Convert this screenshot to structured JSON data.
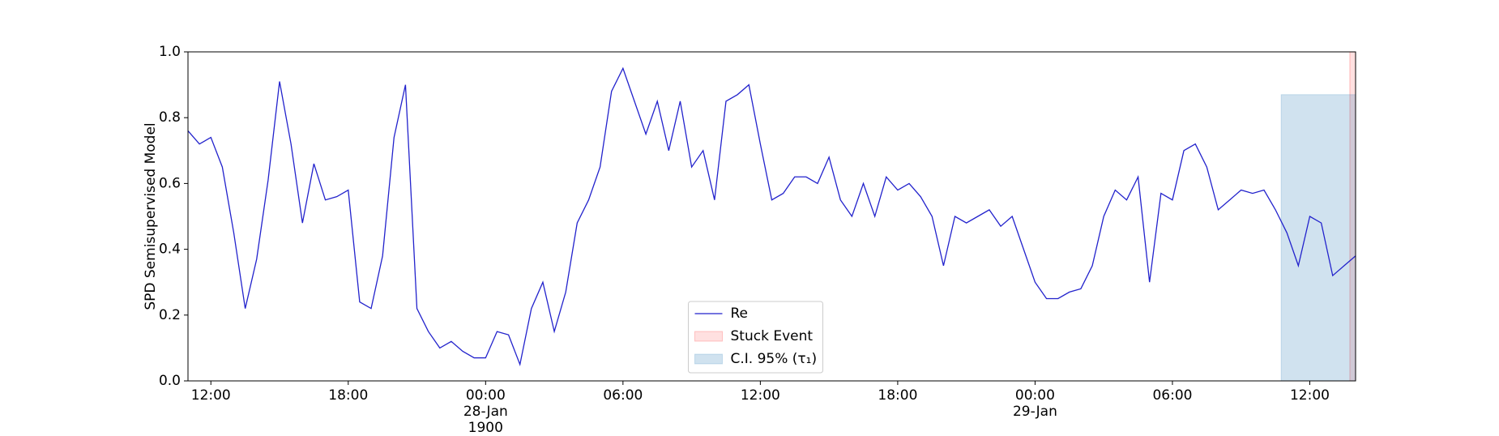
{
  "chart_data": {
    "type": "line",
    "y_label": "SPD Semisupervised Model",
    "x": [
      "1900-01-27 11:00",
      "1900-01-27 11:30",
      "1900-01-27 12:00",
      "1900-01-27 12:30",
      "1900-01-27 13:00",
      "1900-01-27 13:30",
      "1900-01-27 14:00",
      "1900-01-27 14:30",
      "1900-01-27 15:00",
      "1900-01-27 15:30",
      "1900-01-27 16:00",
      "1900-01-27 16:30",
      "1900-01-27 17:00",
      "1900-01-27 17:30",
      "1900-01-27 18:00",
      "1900-01-27 18:30",
      "1900-01-27 19:00",
      "1900-01-27 19:30",
      "1900-01-27 20:00",
      "1900-01-27 20:30",
      "1900-01-27 21:00",
      "1900-01-27 21:30",
      "1900-01-27 22:00",
      "1900-01-27 22:30",
      "1900-01-27 23:00",
      "1900-01-27 23:30",
      "1900-01-28 00:00",
      "1900-01-28 00:30",
      "1900-01-28 01:00",
      "1900-01-28 01:30",
      "1900-01-28 02:00",
      "1900-01-28 02:30",
      "1900-01-28 03:00",
      "1900-01-28 03:30",
      "1900-01-28 04:00",
      "1900-01-28 04:30",
      "1900-01-28 05:00",
      "1900-01-28 05:30",
      "1900-01-28 06:00",
      "1900-01-28 06:30",
      "1900-01-28 07:00",
      "1900-01-28 07:30",
      "1900-01-28 08:00",
      "1900-01-28 08:30",
      "1900-01-28 09:00",
      "1900-01-28 09:30",
      "1900-01-28 10:00",
      "1900-01-28 10:30",
      "1900-01-28 11:00",
      "1900-01-28 11:30",
      "1900-01-28 12:00",
      "1900-01-28 12:30",
      "1900-01-28 13:00",
      "1900-01-28 13:30",
      "1900-01-28 14:00",
      "1900-01-28 14:30",
      "1900-01-28 15:00",
      "1900-01-28 15:30",
      "1900-01-28 16:00",
      "1900-01-28 16:30",
      "1900-01-28 17:00",
      "1900-01-28 17:30",
      "1900-01-28 18:00",
      "1900-01-28 18:30",
      "1900-01-28 19:00",
      "1900-01-28 19:30",
      "1900-01-28 20:00",
      "1900-01-28 20:30",
      "1900-01-28 21:00",
      "1900-01-28 21:30",
      "1900-01-28 22:00",
      "1900-01-28 22:30",
      "1900-01-28 23:00",
      "1900-01-28 23:30",
      "1900-01-29 00:00",
      "1900-01-29 00:30",
      "1900-01-29 01:00",
      "1900-01-29 01:30",
      "1900-01-29 02:00",
      "1900-01-29 02:30",
      "1900-01-29 03:00",
      "1900-01-29 03:30",
      "1900-01-29 04:00",
      "1900-01-29 04:30",
      "1900-01-29 05:00",
      "1900-01-29 05:30",
      "1900-01-29 06:00",
      "1900-01-29 06:30",
      "1900-01-29 07:00",
      "1900-01-29 07:30",
      "1900-01-29 08:00",
      "1900-01-29 08:30",
      "1900-01-29 09:00",
      "1900-01-29 09:30",
      "1900-01-29 10:00",
      "1900-01-29 10:30",
      "1900-01-29 11:00",
      "1900-01-29 11:30",
      "1900-01-29 12:00",
      "1900-01-29 12:30",
      "1900-01-29 13:00",
      "1900-01-29 13:30",
      "1900-01-29 14:00"
    ],
    "series": [
      {
        "name": "Re",
        "color": "#2222cc",
        "values": [
          0.76,
          0.72,
          0.74,
          0.65,
          0.45,
          0.22,
          0.37,
          0.61,
          0.91,
          0.72,
          0.48,
          0.66,
          0.55,
          0.56,
          0.58,
          0.24,
          0.22,
          0.38,
          0.74,
          0.9,
          0.22,
          0.15,
          0.1,
          0.12,
          0.09,
          0.07,
          0.07,
          0.15,
          0.14,
          0.05,
          0.22,
          0.3,
          0.15,
          0.27,
          0.48,
          0.55,
          0.65,
          0.88,
          0.95,
          0.85,
          0.75,
          0.85,
          0.7,
          0.85,
          0.65,
          0.7,
          0.55,
          0.85,
          0.87,
          0.9,
          0.72,
          0.55,
          0.57,
          0.62,
          0.62,
          0.6,
          0.68,
          0.55,
          0.5,
          0.6,
          0.5,
          0.62,
          0.58,
          0.6,
          0.56,
          0.5,
          0.35,
          0.5,
          0.48,
          0.5,
          0.52,
          0.47,
          0.5,
          0.4,
          0.3,
          0.25,
          0.25,
          0.27,
          0.28,
          0.35,
          0.5,
          0.58,
          0.55,
          0.62,
          0.3,
          0.57,
          0.55,
          0.7,
          0.72,
          0.65,
          0.52,
          0.55,
          0.58,
          0.57,
          0.58,
          0.52,
          0.45,
          0.35,
          0.5,
          0.48,
          0.32,
          0.35,
          0.38
        ]
      }
    ],
    "regions": [
      {
        "name": "Stuck Event",
        "color": "#ff0000",
        "x": [
          "1900-01-29 13:45",
          "1900-01-29 14:00"
        ],
        "y": [
          0,
          1
        ]
      },
      {
        "name": "C.I. 95% (τ₁)",
        "color": "#1f77b4",
        "x": [
          "1900-01-29 10:45",
          "1900-01-29 14:00"
        ],
        "y": [
          0,
          0.87
        ]
      }
    ],
    "xlim": [
      "1900-01-27 11:00",
      "1900-01-29 14:00"
    ],
    "xticks": [
      {
        "value": "1900-01-27 12:00",
        "label": "12:00"
      },
      {
        "value": "1900-01-27 18:00",
        "label": "18:00"
      },
      {
        "value": "1900-01-28 00:00",
        "label": "00:00\n28-Jan\n1900"
      },
      {
        "value": "1900-01-28 06:00",
        "label": "06:00"
      },
      {
        "value": "1900-01-28 12:00",
        "label": "12:00"
      },
      {
        "value": "1900-01-28 18:00",
        "label": "18:00"
      },
      {
        "value": "1900-01-29 00:00",
        "label": "00:00\n29-Jan"
      },
      {
        "value": "1900-01-29 06:00",
        "label": "06:00"
      },
      {
        "value": "1900-01-29 12:00",
        "label": "12:00"
      }
    ],
    "ylim": [
      0,
      1
    ],
    "yticks": [
      {
        "value": 0,
        "label": "0.0"
      },
      0.2,
      0.4,
      0.6,
      0.8,
      {
        "value": 1,
        "label": "1.0"
      }
    ],
    "legend": "lower center",
    "grid": false
  }
}
